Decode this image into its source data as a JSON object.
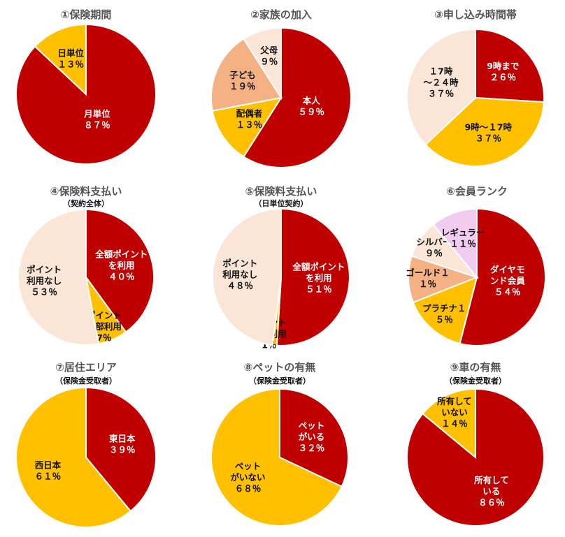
{
  "colors": {
    "red": "#c00000",
    "yellow": "#ffc000",
    "salmon": "#f4b183",
    "peach": "#fbe5d6",
    "pink": "#f2ccf0",
    "label_dark": "#111111",
    "label_light": "#ffffff"
  },
  "chart_data": [
    {
      "type": "pie",
      "title": "①保険期間",
      "subtitle": "",
      "slices": [
        {
          "label": [
            "月単位",
            "８７％"
          ],
          "value": 87,
          "color": "red"
        },
        {
          "label": [
            "日単位",
            "１３％"
          ],
          "value": 13,
          "color": "yellow"
        }
      ]
    },
    {
      "type": "pie",
      "title": "②家族の加入",
      "subtitle": "",
      "slices": [
        {
          "label": [
            "本人",
            "５９％"
          ],
          "value": 59,
          "color": "red"
        },
        {
          "label": [
            "配偶者",
            "１３％"
          ],
          "value": 13,
          "color": "yellow"
        },
        {
          "label": [
            "子ども",
            "１９％"
          ],
          "value": 19,
          "color": "salmon"
        },
        {
          "label": [
            "父母",
            "９％"
          ],
          "value": 9,
          "color": "peach"
        }
      ]
    },
    {
      "type": "pie",
      "title": "③申し込み時間帯",
      "subtitle": "",
      "slices": [
        {
          "label": [
            "9時まで",
            "２６％"
          ],
          "value": 26,
          "color": "red"
        },
        {
          "label": [
            "9時～１7時",
            "３７％"
          ],
          "value": 37,
          "color": "yellow"
        },
        {
          "label": [
            "１7時",
            "～２４時",
            "３７％"
          ],
          "value": 37,
          "color": "peach"
        }
      ]
    },
    {
      "type": "pie",
      "title": "④保険料支払い",
      "subtitle": "（契約全体）",
      "slices": [
        {
          "label": [
            "全額ポイント",
            "を利用",
            "４０％"
          ],
          "value": 40,
          "color": "red"
        },
        {
          "label": [
            "ポイント",
            "一部利用",
            "7％"
          ],
          "value": 7,
          "color": "yellow"
        },
        {
          "label": [
            "ポイント",
            "利用なし",
            "５３％"
          ],
          "value": 53,
          "color": "peach"
        }
      ]
    },
    {
      "type": "pie",
      "title": "⑤保険料支払い",
      "subtitle": "（日単位契約）",
      "slices": [
        {
          "label": [
            "全額ポイント",
            "を利用",
            "５１％"
          ],
          "value": 51,
          "color": "red"
        },
        {
          "label": [
            "ポイント",
            "一部利用",
            "1％"
          ],
          "value": 1,
          "color": "yellow"
        },
        {
          "label": [
            "ポイント",
            "利用なし",
            "４８％"
          ],
          "value": 48,
          "color": "peach"
        }
      ]
    },
    {
      "type": "pie",
      "title": "⑥会員ランク",
      "subtitle": "",
      "slices": [
        {
          "label": [
            "ダイヤモ",
            "ンド会員",
            "５４％"
          ],
          "value": 54,
          "color": "red"
        },
        {
          "label": [
            "プラチナ１",
            "５％"
          ],
          "value": 15,
          "color": "yellow"
        },
        {
          "label": [
            "ゴールド１",
            "１％"
          ],
          "value": 11,
          "color": "salmon"
        },
        {
          "label": [
            "シルバー",
            "９％"
          ],
          "value": 9,
          "color": "peach"
        },
        {
          "label": [
            "レギュラー",
            "１１％"
          ],
          "value": 11,
          "color": "pink"
        }
      ]
    },
    {
      "type": "pie",
      "title": "⑦居住エリア",
      "subtitle": "（保険金受取者）",
      "slices": [
        {
          "label": [
            "東日本",
            "３９％"
          ],
          "value": 39,
          "color": "red"
        },
        {
          "label": [
            "西日本",
            "６１％"
          ],
          "value": 61,
          "color": "yellow"
        }
      ]
    },
    {
      "type": "pie",
      "title": "⑧ペットの有無",
      "subtitle": "（保険金受取者）",
      "slices": [
        {
          "label": [
            "ペット",
            "がいる",
            "３２％"
          ],
          "value": 32,
          "color": "red"
        },
        {
          "label": [
            "ペット",
            "がいない",
            "６８％"
          ],
          "value": 68,
          "color": "yellow"
        }
      ]
    },
    {
      "type": "pie",
      "title": "⑨車の有無",
      "subtitle": "（保険金受取者）",
      "slices": [
        {
          "label": [
            "所有して",
            "いる",
            "８６％"
          ],
          "value": 86,
          "color": "red"
        },
        {
          "label": [
            "所有して",
            "いない",
            "１４％"
          ],
          "value": 14,
          "color": "yellow"
        }
      ]
    }
  ]
}
